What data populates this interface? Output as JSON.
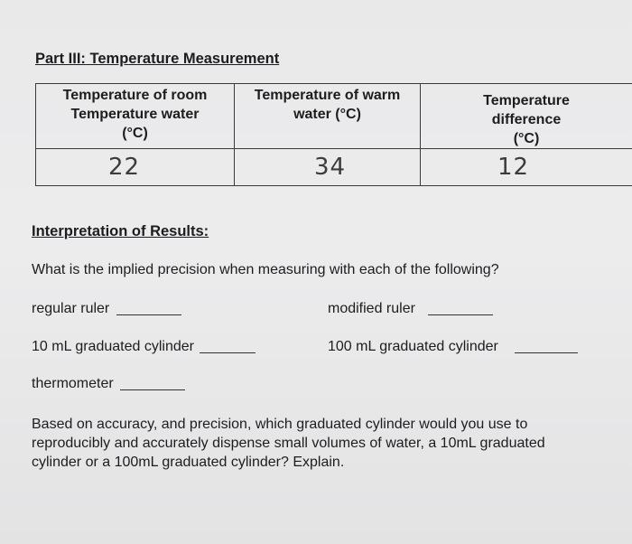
{
  "part3": {
    "heading": "Part III: Temperature Measurement",
    "table": {
      "headers": [
        [
          "Temperature of room",
          "Temperature water",
          "(°C)"
        ],
        [
          "Temperature of warm",
          "water (°C)"
        ],
        [
          "Temperature",
          "difference",
          "(°C)"
        ]
      ],
      "values": [
        "22",
        "34",
        "12"
      ]
    }
  },
  "interpretation": {
    "heading": "Interpretation of Results:",
    "question": "What is the implied precision when measuring with each of the following?",
    "items": {
      "regular_ruler": "regular ruler",
      "modified_ruler": "modified ruler",
      "cyl10": "10 mL graduated cylinder",
      "cyl100": "100 mL graduated cylinder",
      "thermometer": "thermometer"
    },
    "paragraph": [
      "Based on accuracy, and precision, which graduated cylinder would you use to",
      "reproducibly and accurately dispense small volumes of water, a 10mL graduated",
      "cylinder or a 100mL graduated cylinder? Explain."
    ]
  }
}
